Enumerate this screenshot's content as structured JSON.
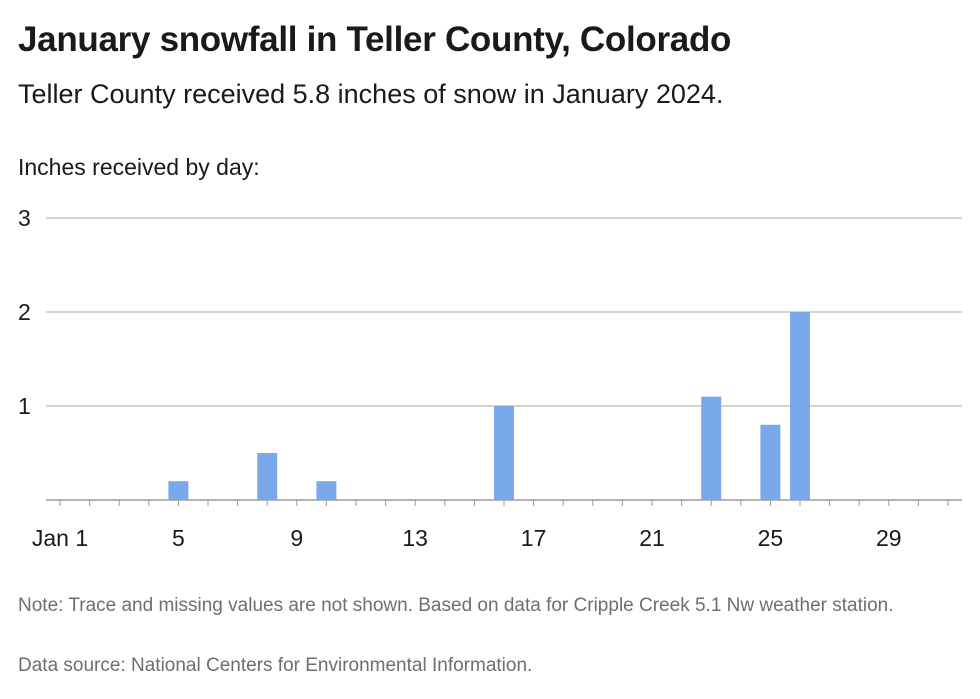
{
  "chart_data": {
    "type": "bar",
    "title": "January snowfall in Teller County, Colorado",
    "subtitle": "Teller County received 5.8 inches of snow in January 2024.",
    "ylabel": "Inches received by day:",
    "xlabel": "",
    "x_tick_labels": [
      "Jan 1",
      "5",
      "9",
      "13",
      "17",
      "21",
      "25",
      "29"
    ],
    "x_tick_days": [
      1,
      5,
      9,
      13,
      17,
      21,
      25,
      29
    ],
    "y_ticks": [
      1,
      2,
      3
    ],
    "ylim": [
      0,
      3
    ],
    "xlim": [
      1,
      31
    ],
    "bar_color": "#7aa9eb",
    "grid": true,
    "bars": [
      {
        "day": 5,
        "value": 0.2
      },
      {
        "day": 8,
        "value": 0.5
      },
      {
        "day": 10,
        "value": 0.2
      },
      {
        "day": 16,
        "value": 1.0
      },
      {
        "day": 23,
        "value": 1.1
      },
      {
        "day": 25,
        "value": 0.8
      },
      {
        "day": 26,
        "value": 2.0
      }
    ]
  },
  "note": "Note: Trace and missing values are not shown. Based on data for Cripple Creek 5.1 Nw weather station.",
  "source": "Data source: National Centers for Environmental Information."
}
